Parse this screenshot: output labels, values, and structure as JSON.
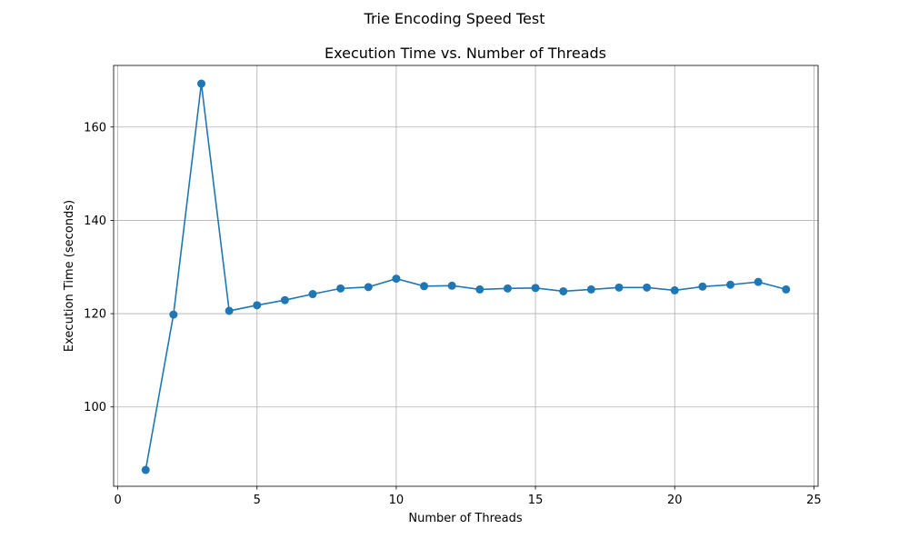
{
  "chart_data": {
    "type": "line",
    "suptitle": "Trie Encoding Speed Test",
    "title": "Execution Time vs. Number of Threads",
    "xlabel": "Number of Threads",
    "ylabel": "Execution Time (seconds)",
    "xlim": [
      -0.15,
      25.15
    ],
    "ylim": [
      83.0,
      173.2
    ],
    "xticks": [
      0,
      5,
      10,
      15,
      20,
      25
    ],
    "yticks": [
      100,
      120,
      140,
      160
    ],
    "grid": true,
    "legend": false,
    "color": "#1f77b4",
    "series": [
      {
        "x": [
          1,
          2,
          3,
          4,
          5,
          6,
          7,
          8,
          9,
          10,
          11,
          12,
          13,
          14,
          15,
          16,
          17,
          18,
          19,
          20,
          21,
          22,
          23,
          24
        ],
        "y": [
          86.5,
          119.8,
          169.3,
          120.6,
          121.8,
          122.9,
          124.2,
          125.4,
          125.7,
          127.5,
          125.9,
          126.0,
          125.2,
          125.4,
          125.5,
          124.8,
          125.2,
          125.6,
          125.6,
          125.0,
          125.8,
          126.2,
          126.8,
          125.2
        ]
      }
    ]
  }
}
